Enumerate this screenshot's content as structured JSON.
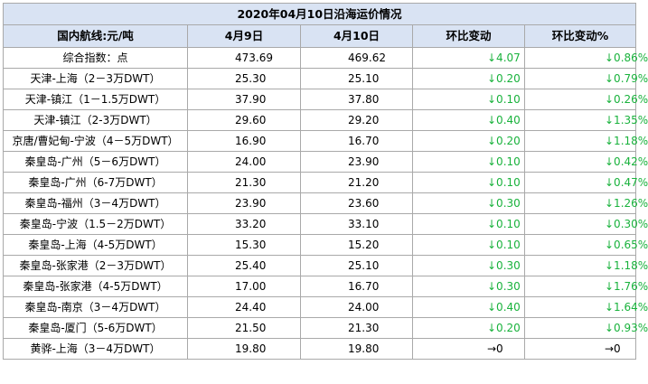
{
  "title": "2020年04月10日沿海运价情况",
  "headers": [
    "国内航线:元/吨",
    "4月9日",
    "4月10日",
    "环比变动",
    "环比变动%"
  ],
  "rows": [
    {
      "route": "综合指数：点",
      "d1": "473.69",
      "d2": "469.62",
      "chg": "↓4.07",
      "pct": "↓0.86%"
    },
    {
      "route": "天津-上海（2－3万DWT）",
      "d1": "25.30",
      "d2": "25.10",
      "chg": "↓0.20",
      "pct": "↓0.79%"
    },
    {
      "route": "天津-镇江（1－1.5万DWT）",
      "d1": "37.90",
      "d2": "37.80",
      "chg": "↓0.10",
      "pct": "↓0.26%"
    },
    {
      "route": "天津-镇江（2-3万DWT）",
      "d1": "29.60",
      "d2": "29.20",
      "chg": "↓0.40",
      "pct": "↓1.35%"
    },
    {
      "route": "京唐/曹妃甸-宁波（4－5万DWT）",
      "d1": "16.90",
      "d2": "16.70",
      "chg": "↓0.20",
      "pct": "↓1.18%"
    },
    {
      "route": "秦皇岛-广州（5－6万DWT）",
      "d1": "24.00",
      "d2": "23.90",
      "chg": "↓0.10",
      "pct": "↓0.42%"
    },
    {
      "route": "秦皇岛-广州（6-7万DWT）",
      "d1": "21.30",
      "d2": "21.20",
      "chg": "↓0.10",
      "pct": "↓0.47%"
    },
    {
      "route": "秦皇岛-福州（3－4万DWT）",
      "d1": "23.90",
      "d2": "23.60",
      "chg": "↓0.30",
      "pct": "↓1.26%"
    },
    {
      "route": "秦皇岛-宁波（1.5－2万DWT）",
      "d1": "33.20",
      "d2": "33.10",
      "chg": "↓0.10",
      "pct": "↓0.30%"
    },
    {
      "route": "秦皇岛-上海（4-5万DWT）",
      "d1": "15.30",
      "d2": "15.20",
      "chg": "↓0.10",
      "pct": "↓0.65%"
    },
    {
      "route": "秦皇岛-张家港（2－3万DWT）",
      "d1": "25.40",
      "d2": "25.10",
      "chg": "↓0.30",
      "pct": "↓1.18%"
    },
    {
      "route": "秦皇岛-张家港（4-5万DWT）",
      "d1": "17.00",
      "d2": "16.70",
      "chg": "↓0.30",
      "pct": "↓1.76%"
    },
    {
      "route": "秦皇岛-南京（3－4万DWT）",
      "d1": "24.40",
      "d2": "24.00",
      "chg": "↓0.40",
      "pct": "↓1.64%"
    },
    {
      "route": "秦皇岛-厦门（5-6万DWT）",
      "d1": "21.50",
      "d2": "21.30",
      "chg": "↓0.20",
      "pct": "↓0.93%"
    },
    {
      "route": "黄骅-上海（3－4万DWT）",
      "d1": "19.80",
      "d2": "19.80",
      "chg": "→0",
      "pct": "→0",
      "flat": true
    }
  ],
  "colors": {
    "header_bg": "#d9e3f3",
    "down": "#19b23c",
    "border": "#a9a9a9"
  }
}
